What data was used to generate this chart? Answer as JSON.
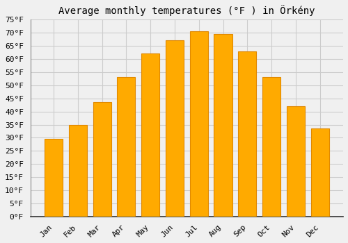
{
  "title": "Average monthly temperatures (°F ) in Örkény",
  "months": [
    "Jan",
    "Feb",
    "Mar",
    "Apr",
    "May",
    "Jun",
    "Jul",
    "Aug",
    "Sep",
    "Oct",
    "Nov",
    "Dec"
  ],
  "values": [
    29.5,
    35.0,
    43.5,
    53.0,
    62.0,
    67.0,
    70.5,
    69.5,
    63.0,
    53.0,
    42.0,
    33.5
  ],
  "bar_color": "#FFAA00",
  "bar_edge_color": "#E08800",
  "ylim": [
    0,
    75
  ],
  "yticks": [
    0,
    5,
    10,
    15,
    20,
    25,
    30,
    35,
    40,
    45,
    50,
    55,
    60,
    65,
    70,
    75
  ],
  "background_color": "#f0f0f0",
  "plot_bg_color": "#f0f0f0",
  "grid_color": "#cccccc",
  "title_fontsize": 10,
  "tick_fontsize": 8,
  "font_family": "monospace"
}
